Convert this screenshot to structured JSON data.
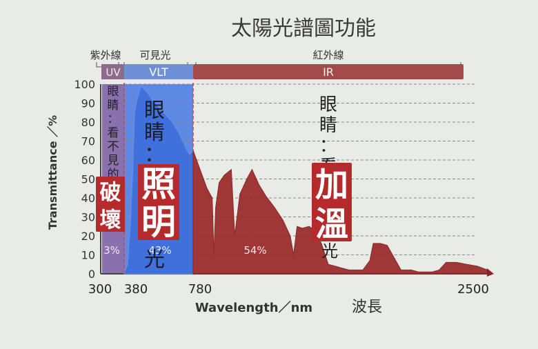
{
  "chart_data": {
    "type": "area",
    "title": "太陽光譜圖功能",
    "xlabel": "Wavelength／nm",
    "xlabel_cn": "波長",
    "ylabel": "Transmittance ／%",
    "ylim": [
      0,
      100
    ],
    "y_ticks": [
      "0",
      "10",
      "20",
      "30",
      "40",
      "50",
      "60",
      "70",
      "80",
      "90",
      "100"
    ],
    "x_ticks": [
      "300",
      "380",
      "780",
      "2500"
    ],
    "bands": [
      {
        "key": "uv",
        "header": "紫外線",
        "bar_label": "UV",
        "percent": "3%",
        "range": [
          300,
          380
        ],
        "color": "#8f6a8d",
        "fill": "#7a5aa3"
      },
      {
        "key": "vlt",
        "header": "可見光",
        "bar_label": "VLT",
        "percent": "43%",
        "range": [
          380,
          780
        ],
        "color": "#6f8fd6",
        "fill": "#4f7ee2"
      },
      {
        "key": "ir",
        "header": "紅外線",
        "bar_label": "IR",
        "percent": "54%",
        "range": [
          780,
          2500
        ],
        "color": "#a34a4a",
        "fill": "#9c2e2e"
      }
    ],
    "annotations": {
      "uv_eye": "眼睛：看不見的",
      "uv_tag": "破壞",
      "vlt_eye": "眼睛：",
      "vlt_tag": "照明",
      "vlt_tail": "光",
      "ir_eye": "眼睛：看",
      "ir_tag": "加溫",
      "ir_tail": "光"
    },
    "series": [
      {
        "x": [
          380,
          400,
          418,
          430,
          440,
          455,
          470,
          480,
          500,
          520,
          540,
          560,
          580,
          600,
          620,
          640,
          660,
          680,
          700,
          720,
          740,
          760,
          780
        ],
        "y": [
          0,
          5,
          30,
          55,
          85,
          92,
          97,
          99,
          97,
          95,
          92,
          90,
          88,
          86,
          84,
          82,
          80,
          77,
          74,
          70,
          66,
          63,
          65
        ]
      },
      {
        "x": [
          780,
          820,
          860,
          890,
          900,
          910,
          930,
          960,
          1000,
          1020,
          1050,
          1090,
          1120,
          1160,
          1200,
          1250,
          1300,
          1340,
          1360,
          1380,
          1410,
          1450,
          1480,
          1520,
          1560,
          1600,
          1640,
          1680,
          1700,
          1760,
          1800,
          1820,
          1860,
          1900,
          1980,
          2000,
          2040,
          2080,
          2120,
          2160,
          2200,
          2240,
          2300,
          2360,
          2420,
          2480,
          2500
        ],
        "y": [
          65,
          55,
          45,
          40,
          10,
          35,
          48,
          52,
          55,
          20,
          42,
          50,
          55,
          47,
          41,
          35,
          28,
          20,
          10,
          25,
          24,
          25,
          23,
          16,
          5,
          4,
          3,
          2,
          2,
          2,
          7,
          16,
          16,
          15,
          2,
          2,
          2,
          1,
          1,
          1,
          2,
          6,
          6,
          5,
          4,
          2,
          0
        ]
      }
    ],
    "grid": "dashed horizontal",
    "legend": "none"
  }
}
